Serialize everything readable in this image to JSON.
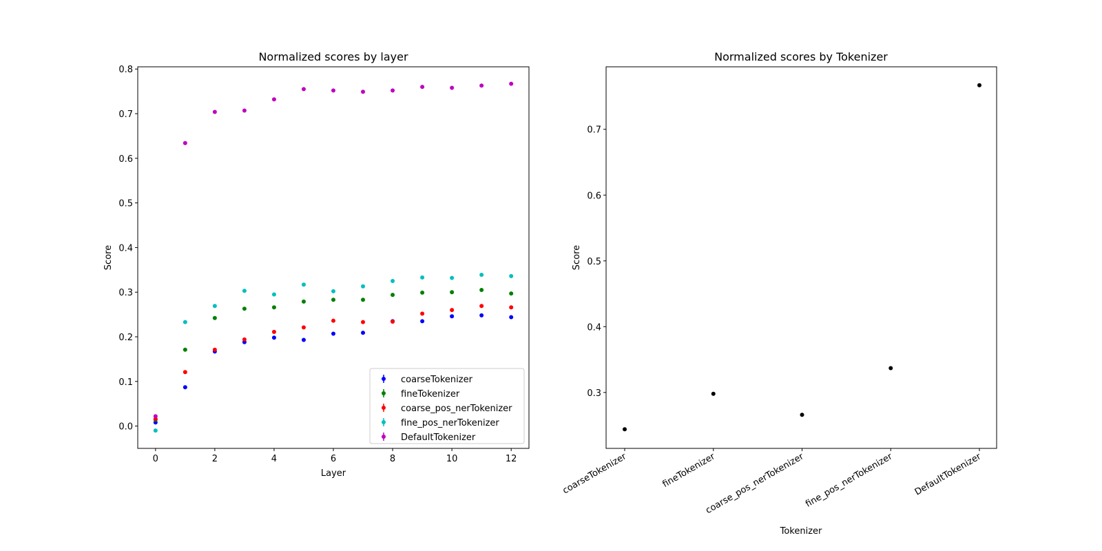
{
  "chart_data": [
    {
      "type": "scatter",
      "title": "Normalized scores by layer",
      "xlabel": "Layer",
      "ylabel": "Score",
      "xlim": [
        -0.6,
        12.6
      ],
      "ylim": [
        -0.05,
        0.805
      ],
      "xticks": [
        0,
        2,
        4,
        6,
        8,
        10,
        12
      ],
      "yticks": [
        0.0,
        0.1,
        0.2,
        0.3,
        0.4,
        0.5,
        0.6,
        0.7,
        0.8
      ],
      "ytick_labels": [
        "0.0",
        "0.1",
        "0.2",
        "0.3",
        "0.4",
        "0.5",
        "0.6",
        "0.7",
        "0.8"
      ],
      "legend_position": "lower-right",
      "grid": false,
      "x": [
        0,
        1,
        2,
        3,
        4,
        5,
        6,
        7,
        8,
        9,
        10,
        11,
        12
      ],
      "series": [
        {
          "name": "coarseTokenizer",
          "color": "#0000ff",
          "values": [
            0.008,
            0.087,
            0.167,
            0.188,
            0.198,
            0.193,
            0.207,
            0.209,
            0.235,
            0.235,
            0.246,
            0.248,
            0.244
          ]
        },
        {
          "name": "fineTokenizer",
          "color": "#008000",
          "values": [
            0.014,
            0.171,
            0.242,
            0.263,
            0.266,
            0.279,
            0.283,
            0.283,
            0.294,
            0.299,
            0.3,
            0.305,
            0.297
          ]
        },
        {
          "name": "coarse_pos_nerTokenizer",
          "color": "#ff0000",
          "values": [
            0.016,
            0.121,
            0.171,
            0.194,
            0.211,
            0.221,
            0.236,
            0.233,
            0.234,
            0.252,
            0.26,
            0.269,
            0.266
          ]
        },
        {
          "name": "fine_pos_nerTokenizer",
          "color": "#00bfbf",
          "values": [
            -0.01,
            0.233,
            0.269,
            0.303,
            0.295,
            0.317,
            0.302,
            0.313,
            0.325,
            0.333,
            0.332,
            0.339,
            0.336
          ]
        },
        {
          "name": "DefaultTokenizer",
          "color": "#bf00bf",
          "values": [
            0.022,
            0.634,
            0.704,
            0.707,
            0.732,
            0.755,
            0.752,
            0.749,
            0.752,
            0.76,
            0.758,
            0.763,
            0.767
          ]
        }
      ]
    },
    {
      "type": "scatter",
      "title": "Normalized scores by Tokenizer",
      "xlabel": "Tokenizer",
      "ylabel": "Score",
      "ylim": [
        0.215,
        0.795
      ],
      "yticks": [
        0.3,
        0.4,
        0.5,
        0.6,
        0.7
      ],
      "ytick_labels": [
        "0.3",
        "0.4",
        "0.5",
        "0.6",
        "0.7"
      ],
      "grid": false,
      "color": "#000000",
      "categories": [
        "coarseTokenizer",
        "fineTokenizer",
        "coarse_pos_nerTokenizer",
        "fine_pos_nerTokenizer",
        "DefaultTokenizer"
      ],
      "values": [
        0.244,
        0.298,
        0.266,
        0.337,
        0.767
      ]
    }
  ]
}
